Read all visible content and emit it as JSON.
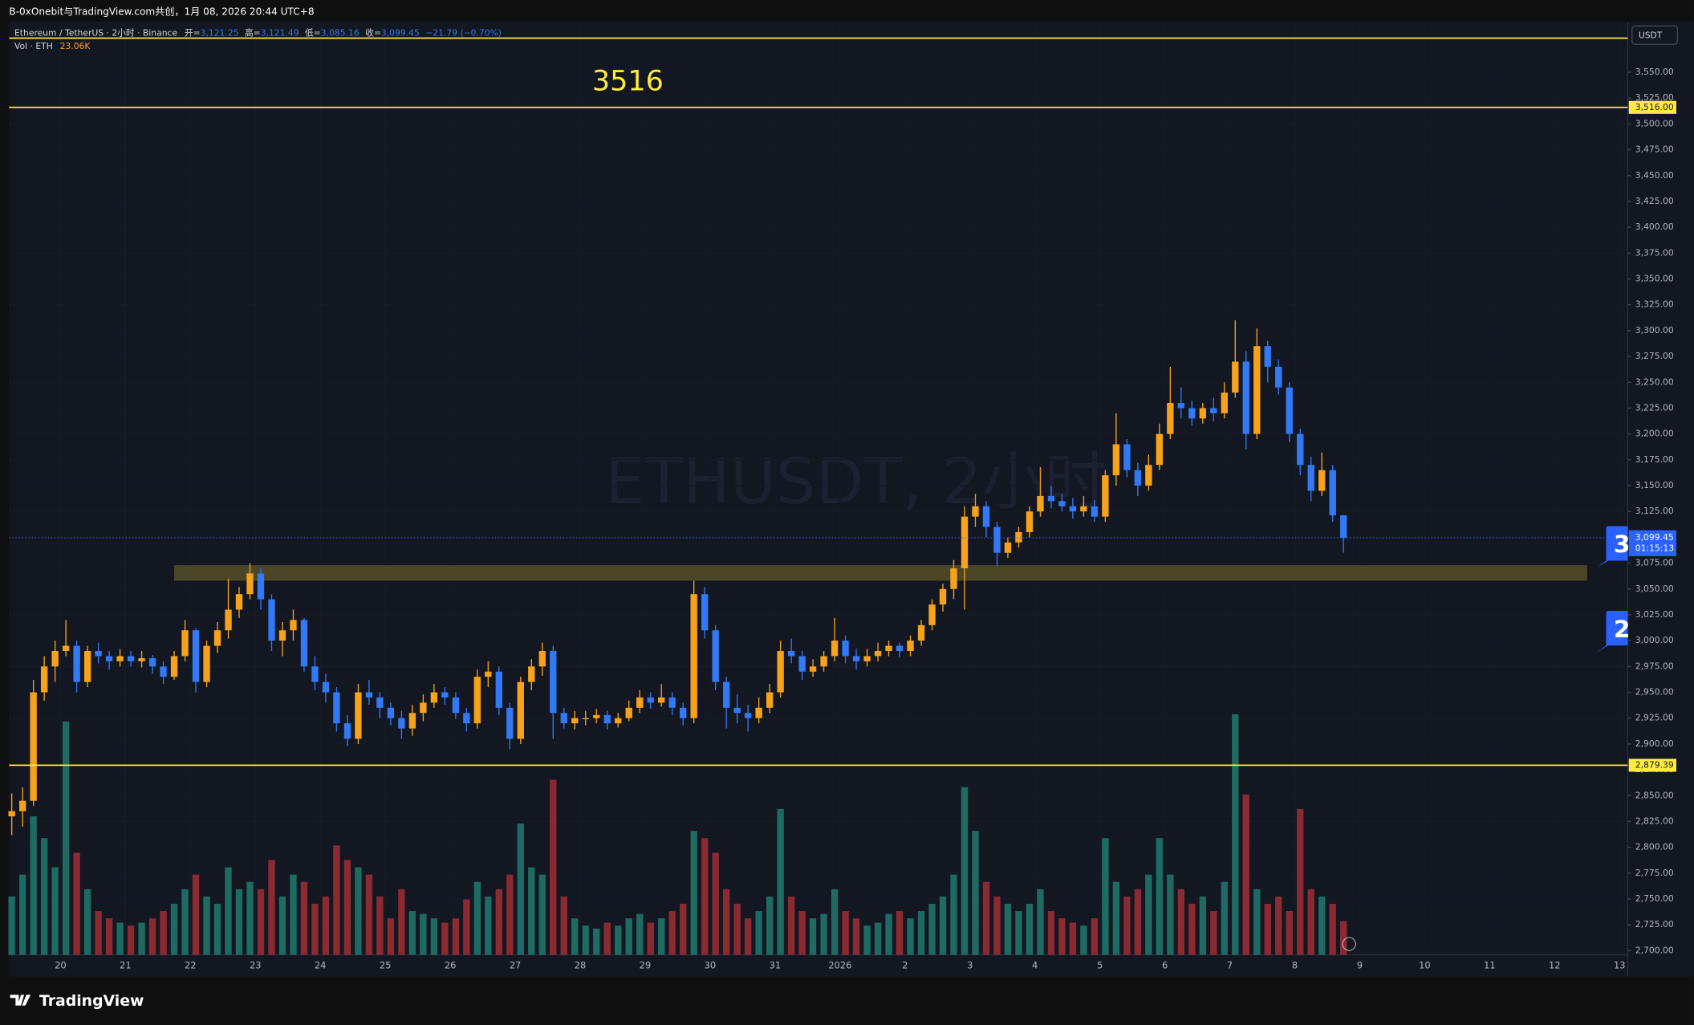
{
  "chart_data": {
    "type": "candlestick",
    "title": "B-0xOnebit与TradingView.com共创，1月 08, 2026 20:44 UTC+8",
    "legend": {
      "symbol": "Ethereum / TetherUS · 2小时 · Binance",
      "items": [
        [
          "开=",
          "3,121.25"
        ],
        [
          "高=",
          "3,121.49"
        ],
        [
          "低=",
          "3,085.16"
        ],
        [
          "收=",
          "3,099.45"
        ]
      ],
      "change": "−21.79 (−0.70%)"
    },
    "volume_legend": {
      "label": "Vol · ETH",
      "value": "23.06K"
    },
    "watermark": "ETHUSDT, 2小时",
    "annotation": "3516",
    "brand": "TradingView",
    "y_unit": "USDT",
    "up_color": "#f7a21b",
    "down_color": "#3179f5",
    "volume_up_color": "#1e6b64",
    "volume_down_color": "#8c2a31",
    "xlim": [
      -19,
      579
    ],
    "ylim": [
      2696,
      3599
    ],
    "vlim": [
      0,
      160
    ],
    "xticks": [
      {
        "value": 0,
        "label": "20"
      },
      {
        "value": 24,
        "label": "21"
      },
      {
        "value": 48,
        "label": "22"
      },
      {
        "value": 72,
        "label": "23"
      },
      {
        "value": 96,
        "label": "24"
      },
      {
        "value": 120,
        "label": "25"
      },
      {
        "value": 144,
        "label": "26"
      },
      {
        "value": 168,
        "label": "27"
      },
      {
        "value": 192,
        "label": "28"
      },
      {
        "value": 216,
        "label": "29"
      },
      {
        "value": 240,
        "label": "30"
      },
      {
        "value": 264,
        "label": "31"
      },
      {
        "value": 288,
        "label": "2026"
      },
      {
        "value": 312,
        "label": "2"
      },
      {
        "value": 336,
        "label": "3"
      },
      {
        "value": 360,
        "label": "4"
      },
      {
        "value": 384,
        "label": "5"
      },
      {
        "value": 408,
        "label": "6"
      },
      {
        "value": 432,
        "label": "7"
      },
      {
        "value": 456,
        "label": "8"
      },
      {
        "value": 480,
        "label": "9"
      },
      {
        "value": 504,
        "label": "10"
      },
      {
        "value": 528,
        "label": "11"
      },
      {
        "value": 552,
        "label": "12"
      },
      {
        "value": 576,
        "label": "13"
      }
    ],
    "yticks": [
      {
        "value": 2700,
        "label": "2,700.00"
      },
      {
        "value": 2725,
        "label": "2,725.00"
      },
      {
        "value": 2750,
        "label": "2,750.00"
      },
      {
        "value": 2775,
        "label": "2,775.00"
      },
      {
        "value": 2800,
        "label": "2,800.00"
      },
      {
        "value": 2825,
        "label": "2,825.00"
      },
      {
        "value": 2850,
        "label": "2,850.00"
      },
      {
        "value": 2875,
        "label": "2,875.00"
      },
      {
        "value": 2900,
        "label": "2,900.00"
      },
      {
        "value": 2925,
        "label": "2,925.00"
      },
      {
        "value": 2950,
        "label": "2,950.00"
      },
      {
        "value": 2975,
        "label": "2,975.00"
      },
      {
        "value": 3000,
        "label": "3,000.00"
      },
      {
        "value": 3025,
        "label": "3,025.00"
      },
      {
        "value": 3050,
        "label": "3,050.00"
      },
      {
        "value": 3075,
        "label": "3,075.00"
      },
      {
        "value": 3100,
        "label": "3,100.00"
      },
      {
        "value": 3125,
        "label": "3,125.00"
      },
      {
        "value": 3150,
        "label": "3,150.00"
      },
      {
        "value": 3175,
        "label": "3,175.00"
      },
      {
        "value": 3200,
        "label": "3,200.00"
      },
      {
        "value": 3225,
        "label": "3,225.00"
      },
      {
        "value": 3250,
        "label": "3,250.00"
      },
      {
        "value": 3275,
        "label": "3,275.00"
      },
      {
        "value": 3300,
        "label": "3,300.00"
      },
      {
        "value": 3325,
        "label": "3,325.00"
      },
      {
        "value": 3350,
        "label": "3,350.00"
      },
      {
        "value": 3375,
        "label": "3,375.00"
      },
      {
        "value": 3400,
        "label": "3,400.00"
      },
      {
        "value": 3425,
        "label": "3,425.00"
      },
      {
        "value": 3450,
        "label": "3,450.00"
      },
      {
        "value": 3475,
        "label": "3,475.00"
      },
      {
        "value": 3500,
        "label": "3,500.00"
      },
      {
        "value": 3525,
        "label": "3,525.00"
      },
      {
        "value": 3550,
        "label": "3,550.00"
      }
    ],
    "levels": [
      {
        "value": 3583,
        "color": "#ffeb3b"
      },
      {
        "value": 3516,
        "label": "3,516.00",
        "color": "#ffeb3b"
      },
      {
        "value": 2879.39,
        "label": "2,879.39",
        "color": "#ffeb3b"
      }
    ],
    "zone": {
      "x": [
        42,
        564
      ],
      "y": [
        3058,
        3073
      ],
      "color": "#4a4626"
    },
    "price_label": {
      "value": 3099.45,
      "label": "3,099.45",
      "countdown": "01:15:13",
      "color": "#2962ff"
    },
    "alerts": [
      {
        "label": "3",
        "value": 3092
      },
      {
        "label": "2",
        "value": 3010
      }
    ],
    "x": [
      -18,
      -14,
      -10,
      -6,
      -2,
      2,
      6,
      10,
      14,
      18,
      22,
      26,
      30,
      34,
      38,
      42,
      46,
      50,
      54,
      58,
      62,
      66,
      70,
      74,
      78,
      82,
      86,
      90,
      94,
      98,
      102,
      106,
      110,
      114,
      118,
      122,
      126,
      130,
      134,
      138,
      142,
      146,
      150,
      154,
      158,
      162,
      166,
      170,
      174,
      178,
      182,
      186,
      190,
      194,
      198,
      202,
      206,
      210,
      214,
      218,
      222,
      226,
      230,
      234,
      238,
      242,
      246,
      250,
      254,
      258,
      262,
      266,
      270,
      274,
      278,
      282,
      286,
      290,
      294,
      298,
      302,
      306,
      310,
      314,
      318,
      322,
      326,
      330,
      334,
      338,
      342,
      346,
      350,
      354,
      358,
      362,
      366,
      370,
      374,
      378,
      382,
      386,
      390,
      394,
      398,
      402,
      406,
      410,
      414,
      418,
      422,
      426,
      430,
      434,
      438,
      442,
      446,
      450,
      454,
      458,
      462,
      466,
      470,
      474
    ],
    "ohlc": [
      [
        2830,
        2852,
        2812,
        2835
      ],
      [
        2835,
        2858,
        2820,
        2845
      ],
      [
        2845,
        2962,
        2840,
        2950
      ],
      [
        2950,
        2985,
        2942,
        2975
      ],
      [
        2975,
        3000,
        2960,
        2990
      ],
      [
        2990,
        3020,
        2985,
        2995
      ],
      [
        2995,
        3000,
        2950,
        2960
      ],
      [
        2960,
        2995,
        2955,
        2990
      ],
      [
        2990,
        2998,
        2978,
        2985
      ],
      [
        2985,
        2990,
        2972,
        2980
      ],
      [
        2980,
        2992,
        2975,
        2985
      ],
      [
        2985,
        2990,
        2975,
        2980
      ],
      [
        2980,
        2990,
        2974,
        2983
      ],
      [
        2983,
        2986,
        2968,
        2975
      ],
      [
        2975,
        2980,
        2958,
        2965
      ],
      [
        2965,
        2990,
        2962,
        2985
      ],
      [
        2985,
        3020,
        2980,
        3010
      ],
      [
        3010,
        3012,
        2950,
        2960
      ],
      [
        2960,
        3000,
        2955,
        2995
      ],
      [
        2995,
        3018,
        2988,
        3010
      ],
      [
        3010,
        3060,
        3002,
        3030
      ],
      [
        3030,
        3052,
        3022,
        3045
      ],
      [
        3045,
        3075,
        3040,
        3065
      ],
      [
        3065,
        3070,
        3030,
        3040
      ],
      [
        3040,
        3045,
        2990,
        3000
      ],
      [
        3000,
        3018,
        2985,
        3010
      ],
      [
        3010,
        3030,
        3000,
        3020
      ],
      [
        3020,
        3022,
        2970,
        2975
      ],
      [
        2975,
        2985,
        2952,
        2960
      ],
      [
        2960,
        2968,
        2940,
        2950
      ],
      [
        2950,
        2955,
        2912,
        2920
      ],
      [
        2920,
        2928,
        2898,
        2905
      ],
      [
        2905,
        2958,
        2900,
        2950
      ],
      [
        2950,
        2962,
        2938,
        2945
      ],
      [
        2945,
        2950,
        2925,
        2935
      ],
      [
        2935,
        2940,
        2918,
        2925
      ],
      [
        2925,
        2932,
        2905,
        2915
      ],
      [
        2915,
        2938,
        2908,
        2930
      ],
      [
        2930,
        2948,
        2922,
        2940
      ],
      [
        2940,
        2958,
        2935,
        2950
      ],
      [
        2950,
        2955,
        2938,
        2945
      ],
      [
        2945,
        2950,
        2924,
        2930
      ],
      [
        2930,
        2935,
        2912,
        2920
      ],
      [
        2920,
        2972,
        2915,
        2965
      ],
      [
        2965,
        2980,
        2955,
        2970
      ],
      [
        2970,
        2975,
        2928,
        2935
      ],
      [
        2935,
        2940,
        2895,
        2905
      ],
      [
        2905,
        2965,
        2900,
        2960
      ],
      [
        2960,
        2982,
        2952,
        2975
      ],
      [
        2975,
        2998,
        2966,
        2990
      ],
      [
        2990,
        2995,
        2905,
        2930
      ],
      [
        2930,
        2935,
        2915,
        2920
      ],
      [
        2920,
        2932,
        2914,
        2925
      ],
      [
        2925,
        2932,
        2918,
        2925
      ],
      [
        2925,
        2934,
        2920,
        2928
      ],
      [
        2928,
        2932,
        2914,
        2920
      ],
      [
        2920,
        2930,
        2916,
        2925
      ],
      [
        2925,
        2942,
        2922,
        2935
      ],
      [
        2935,
        2952,
        2930,
        2945
      ],
      [
        2945,
        2950,
        2934,
        2940
      ],
      [
        2940,
        2958,
        2936,
        2945
      ],
      [
        2945,
        2950,
        2928,
        2935
      ],
      [
        2935,
        2940,
        2918,
        2925
      ],
      [
        2925,
        3058,
        2920,
        3045
      ],
      [
        3045,
        3052,
        3002,
        3010
      ],
      [
        3010,
        3015,
        2952,
        2960
      ],
      [
        2960,
        2965,
        2915,
        2935
      ],
      [
        2935,
        2948,
        2920,
        2930
      ],
      [
        2930,
        2938,
        2912,
        2925
      ],
      [
        2925,
        2945,
        2920,
        2935
      ],
      [
        2935,
        2958,
        2930,
        2950
      ],
      [
        2950,
        3000,
        2945,
        2990
      ],
      [
        2990,
        3002,
        2978,
        2985
      ],
      [
        2985,
        2990,
        2962,
        2970
      ],
      [
        2970,
        2982,
        2965,
        2975
      ],
      [
        2975,
        2990,
        2970,
        2985
      ],
      [
        2985,
        3022,
        2980,
        3000
      ],
      [
        3000,
        3005,
        2978,
        2985
      ],
      [
        2985,
        2992,
        2972,
        2980
      ],
      [
        2980,
        2992,
        2975,
        2985
      ],
      [
        2985,
        2998,
        2980,
        2990
      ],
      [
        2990,
        3000,
        2985,
        2995
      ],
      [
        2995,
        2998,
        2984,
        2990
      ],
      [
        2990,
        3005,
        2985,
        3000
      ],
      [
        3000,
        3020,
        2995,
        3015
      ],
      [
        3015,
        3040,
        3010,
        3035
      ],
      [
        3035,
        3055,
        3028,
        3050
      ],
      [
        3050,
        3078,
        3040,
        3070
      ],
      [
        3070,
        3130,
        3030,
        3120
      ],
      [
        3120,
        3142,
        3110,
        3130
      ],
      [
        3130,
        3135,
        3100,
        3110
      ],
      [
        3110,
        3115,
        3072,
        3085
      ],
      [
        3085,
        3100,
        3080,
        3095
      ],
      [
        3095,
        3110,
        3090,
        3105
      ],
      [
        3105,
        3130,
        3100,
        3125
      ],
      [
        3125,
        3168,
        3120,
        3140
      ],
      [
        3140,
        3150,
        3128,
        3135
      ],
      [
        3135,
        3142,
        3125,
        3130
      ],
      [
        3130,
        3138,
        3118,
        3125
      ],
      [
        3125,
        3140,
        3120,
        3130
      ],
      [
        3130,
        3136,
        3115,
        3120
      ],
      [
        3120,
        3165,
        3115,
        3160
      ],
      [
        3160,
        3220,
        3150,
        3190
      ],
      [
        3190,
        3195,
        3158,
        3165
      ],
      [
        3165,
        3172,
        3140,
        3150
      ],
      [
        3150,
        3180,
        3145,
        3170
      ],
      [
        3170,
        3210,
        3165,
        3200
      ],
      [
        3200,
        3265,
        3195,
        3230
      ],
      [
        3230,
        3245,
        3215,
        3225
      ],
      [
        3225,
        3232,
        3208,
        3215
      ],
      [
        3215,
        3230,
        3210,
        3225
      ],
      [
        3225,
        3235,
        3212,
        3220
      ],
      [
        3220,
        3250,
        3215,
        3240
      ],
      [
        3240,
        3310,
        3235,
        3270
      ],
      [
        3270,
        3280,
        3185,
        3200
      ],
      [
        3200,
        3302,
        3195,
        3285
      ],
      [
        3285,
        3290,
        3250,
        3265
      ],
      [
        3265,
        3272,
        3238,
        3245
      ],
      [
        3245,
        3250,
        3192,
        3200
      ],
      [
        3200,
        3205,
        3160,
        3170
      ],
      [
        3170,
        3178,
        3135,
        3145
      ],
      [
        3145,
        3182,
        3140,
        3165
      ],
      [
        3165,
        3170,
        3115,
        3121.25
      ],
      [
        3121.25,
        3121.49,
        3085.16,
        3099.45
      ]
    ],
    "volume": [
      40,
      55,
      95,
      80,
      60,
      160,
      70,
      45,
      30,
      25,
      22,
      20,
      22,
      25,
      30,
      35,
      45,
      55,
      40,
      35,
      60,
      45,
      50,
      45,
      65,
      40,
      55,
      50,
      35,
      40,
      75,
      65,
      60,
      55,
      40,
      25,
      45,
      30,
      28,
      25,
      22,
      25,
      38,
      50,
      40,
      45,
      55,
      90,
      60,
      55,
      120,
      40,
      25,
      20,
      18,
      22,
      20,
      25,
      28,
      22,
      25,
      30,
      35,
      85,
      80,
      70,
      45,
      35,
      25,
      30,
      40,
      100,
      40,
      30,
      25,
      28,
      45,
      30,
      25,
      20,
      22,
      28,
      30,
      25,
      30,
      35,
      40,
      55,
      115,
      85,
      50,
      40,
      35,
      30,
      35,
      45,
      30,
      25,
      22,
      20,
      25,
      80,
      50,
      40,
      45,
      55,
      80,
      55,
      45,
      35,
      40,
      30,
      50,
      165,
      110,
      45,
      35,
      40,
      30,
      100,
      45,
      40,
      35,
      23.06
    ]
  }
}
